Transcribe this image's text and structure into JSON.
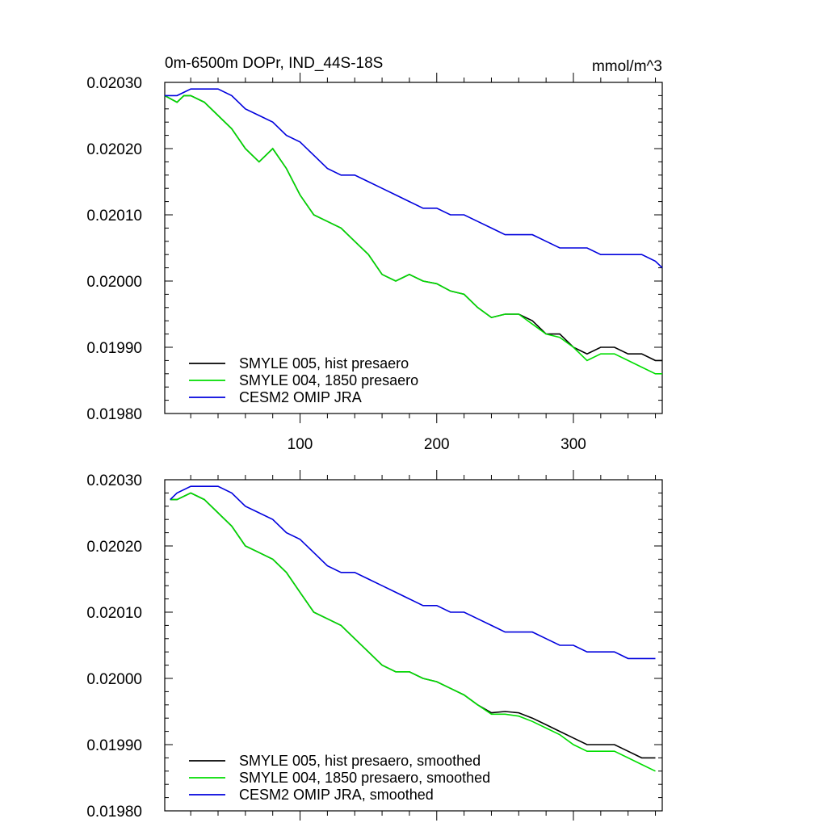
{
  "chart_data": [
    {
      "type": "line",
      "title": "0m-6500m DOPr, IND_44S-18S",
      "units": "mmol/m^3",
      "xlim": [
        1,
        365
      ],
      "ylim": [
        0.0198,
        0.0203
      ],
      "xticks": [
        100,
        200,
        300
      ],
      "xtick_labels": [
        "100",
        "200",
        "300"
      ],
      "yticks": [
        0.0198,
        0.0199,
        0.02,
        0.0201,
        0.0202,
        0.0203
      ],
      "ytick_labels": [
        "0.01980",
        "0.01990",
        "0.02000",
        "0.02010",
        "0.02020",
        "0.02030"
      ],
      "legend_position": "bottom-left",
      "series": [
        {
          "name": "SMYLE 005, hist presaero",
          "color": "#000000",
          "x": [
            1,
            10,
            15,
            20,
            30,
            40,
            50,
            60,
            70,
            80,
            90,
            100,
            110,
            120,
            130,
            140,
            150,
            160,
            170,
            180,
            190,
            200,
            210,
            220,
            230,
            240,
            250,
            260,
            270,
            280,
            290,
            300,
            310,
            320,
            330,
            340,
            350,
            360,
            365
          ],
          "y": [
            0.02028,
            0.02027,
            0.02028,
            0.02028,
            0.02027,
            0.02025,
            0.02023,
            0.0202,
            0.02018,
            0.0202,
            0.02017,
            0.02013,
            0.0201,
            0.02009,
            0.02008,
            0.02006,
            0.02004,
            0.02001,
            0.02,
            0.02001,
            0.02,
            0.019996,
            0.019985,
            0.01998,
            0.01996,
            0.019945,
            0.01995,
            0.01995,
            0.01994,
            0.01992,
            0.01992,
            0.0199,
            0.01989,
            0.0199,
            0.0199,
            0.01989,
            0.01989,
            0.01988,
            0.01988
          ]
        },
        {
          "name": "SMYLE 004, 1850 presaero",
          "color": "#00dd00",
          "x": [
            1,
            10,
            15,
            20,
            30,
            40,
            50,
            60,
            70,
            80,
            90,
            100,
            110,
            120,
            130,
            140,
            150,
            160,
            170,
            180,
            190,
            200,
            210,
            220,
            230,
            240,
            250,
            260,
            270,
            280,
            290,
            300,
            310,
            320,
            330,
            340,
            350,
            360,
            365
          ],
          "y": [
            0.02028,
            0.02027,
            0.02028,
            0.02028,
            0.02027,
            0.02025,
            0.02023,
            0.0202,
            0.02018,
            0.0202,
            0.02017,
            0.02013,
            0.0201,
            0.02009,
            0.02008,
            0.02006,
            0.02004,
            0.02001,
            0.02,
            0.02001,
            0.02,
            0.019996,
            0.019985,
            0.01998,
            0.01996,
            0.019945,
            0.01995,
            0.01995,
            0.019935,
            0.01992,
            0.019915,
            0.0199,
            0.01988,
            0.01989,
            0.01989,
            0.01988,
            0.01987,
            0.01986,
            0.01986
          ]
        },
        {
          "name": "CESM2 OMIP JRA",
          "color": "#0000dd",
          "x": [
            1,
            10,
            20,
            30,
            40,
            50,
            60,
            70,
            80,
            90,
            100,
            110,
            120,
            130,
            140,
            150,
            160,
            170,
            180,
            190,
            200,
            210,
            220,
            230,
            240,
            250,
            260,
            270,
            280,
            290,
            300,
            310,
            320,
            330,
            340,
            350,
            360,
            365
          ],
          "y": [
            0.02028,
            0.02028,
            0.02029,
            0.02029,
            0.02029,
            0.02028,
            0.02026,
            0.02025,
            0.02024,
            0.02022,
            0.02021,
            0.02019,
            0.02017,
            0.02016,
            0.02016,
            0.02015,
            0.02014,
            0.02013,
            0.02012,
            0.02011,
            0.02011,
            0.0201,
            0.0201,
            0.02009,
            0.02008,
            0.02007,
            0.02007,
            0.02007,
            0.02006,
            0.02005,
            0.02005,
            0.02005,
            0.02004,
            0.02004,
            0.02004,
            0.02004,
            0.02003,
            0.02002
          ]
        }
      ]
    },
    {
      "type": "line",
      "xlim": [
        1,
        365
      ],
      "ylim": [
        0.0198,
        0.0203
      ],
      "yticks": [
        0.0198,
        0.0199,
        0.02,
        0.0201,
        0.0202,
        0.0203
      ],
      "ytick_labels": [
        "0.01980",
        "0.01990",
        "0.02000",
        "0.02010",
        "0.02020",
        "0.02030"
      ],
      "legend_position": "bottom-left",
      "series": [
        {
          "name": "SMYLE 005, hist presaero, smoothed",
          "color": "#000000",
          "x": [
            5,
            10,
            20,
            30,
            40,
            50,
            60,
            70,
            80,
            90,
            100,
            110,
            120,
            130,
            140,
            150,
            160,
            170,
            180,
            190,
            200,
            210,
            220,
            230,
            240,
            250,
            260,
            270,
            280,
            290,
            300,
            310,
            320,
            330,
            340,
            350,
            360
          ],
          "y": [
            0.02027,
            0.02027,
            0.02028,
            0.02027,
            0.02025,
            0.02023,
            0.0202,
            0.02019,
            0.02018,
            0.02016,
            0.02013,
            0.0201,
            0.02009,
            0.02008,
            0.02006,
            0.02004,
            0.02002,
            0.02001,
            0.02001,
            0.02,
            0.019995,
            0.019985,
            0.019975,
            0.01996,
            0.019948,
            0.01995,
            0.019948,
            0.01994,
            0.01993,
            0.01992,
            0.01991,
            0.0199,
            0.0199,
            0.0199,
            0.01989,
            0.01988,
            0.01988
          ]
        },
        {
          "name": "SMYLE 004, 1850 presaero, smoothed",
          "color": "#00dd00",
          "x": [
            5,
            10,
            20,
            30,
            40,
            50,
            60,
            70,
            80,
            90,
            100,
            110,
            120,
            130,
            140,
            150,
            160,
            170,
            180,
            190,
            200,
            210,
            220,
            230,
            240,
            250,
            260,
            270,
            280,
            290,
            300,
            310,
            320,
            330,
            340,
            350,
            360
          ],
          "y": [
            0.02027,
            0.02027,
            0.02028,
            0.02027,
            0.02025,
            0.02023,
            0.0202,
            0.02019,
            0.02018,
            0.02016,
            0.02013,
            0.0201,
            0.02009,
            0.02008,
            0.02006,
            0.02004,
            0.02002,
            0.02001,
            0.02001,
            0.02,
            0.019995,
            0.019985,
            0.019975,
            0.01996,
            0.019946,
            0.019946,
            0.019943,
            0.019935,
            0.019925,
            0.019915,
            0.0199,
            0.01989,
            0.01989,
            0.01989,
            0.01988,
            0.01987,
            0.01986
          ]
        },
        {
          "name": "CESM2 OMIP JRA, smoothed",
          "color": "#0000dd",
          "x": [
            5,
            10,
            20,
            30,
            40,
            50,
            60,
            70,
            80,
            90,
            100,
            110,
            120,
            130,
            140,
            150,
            160,
            170,
            180,
            190,
            200,
            210,
            220,
            230,
            240,
            250,
            260,
            270,
            280,
            290,
            300,
            310,
            320,
            330,
            340,
            350,
            360
          ],
          "y": [
            0.02027,
            0.02028,
            0.02029,
            0.02029,
            0.02029,
            0.02028,
            0.02026,
            0.02025,
            0.02024,
            0.02022,
            0.02021,
            0.02019,
            0.02017,
            0.02016,
            0.02016,
            0.02015,
            0.02014,
            0.02013,
            0.02012,
            0.02011,
            0.02011,
            0.0201,
            0.0201,
            0.02009,
            0.02008,
            0.02007,
            0.02007,
            0.02007,
            0.02006,
            0.02005,
            0.02005,
            0.02004,
            0.02004,
            0.02004,
            0.02003,
            0.02003,
            0.02003
          ]
        }
      ]
    }
  ]
}
